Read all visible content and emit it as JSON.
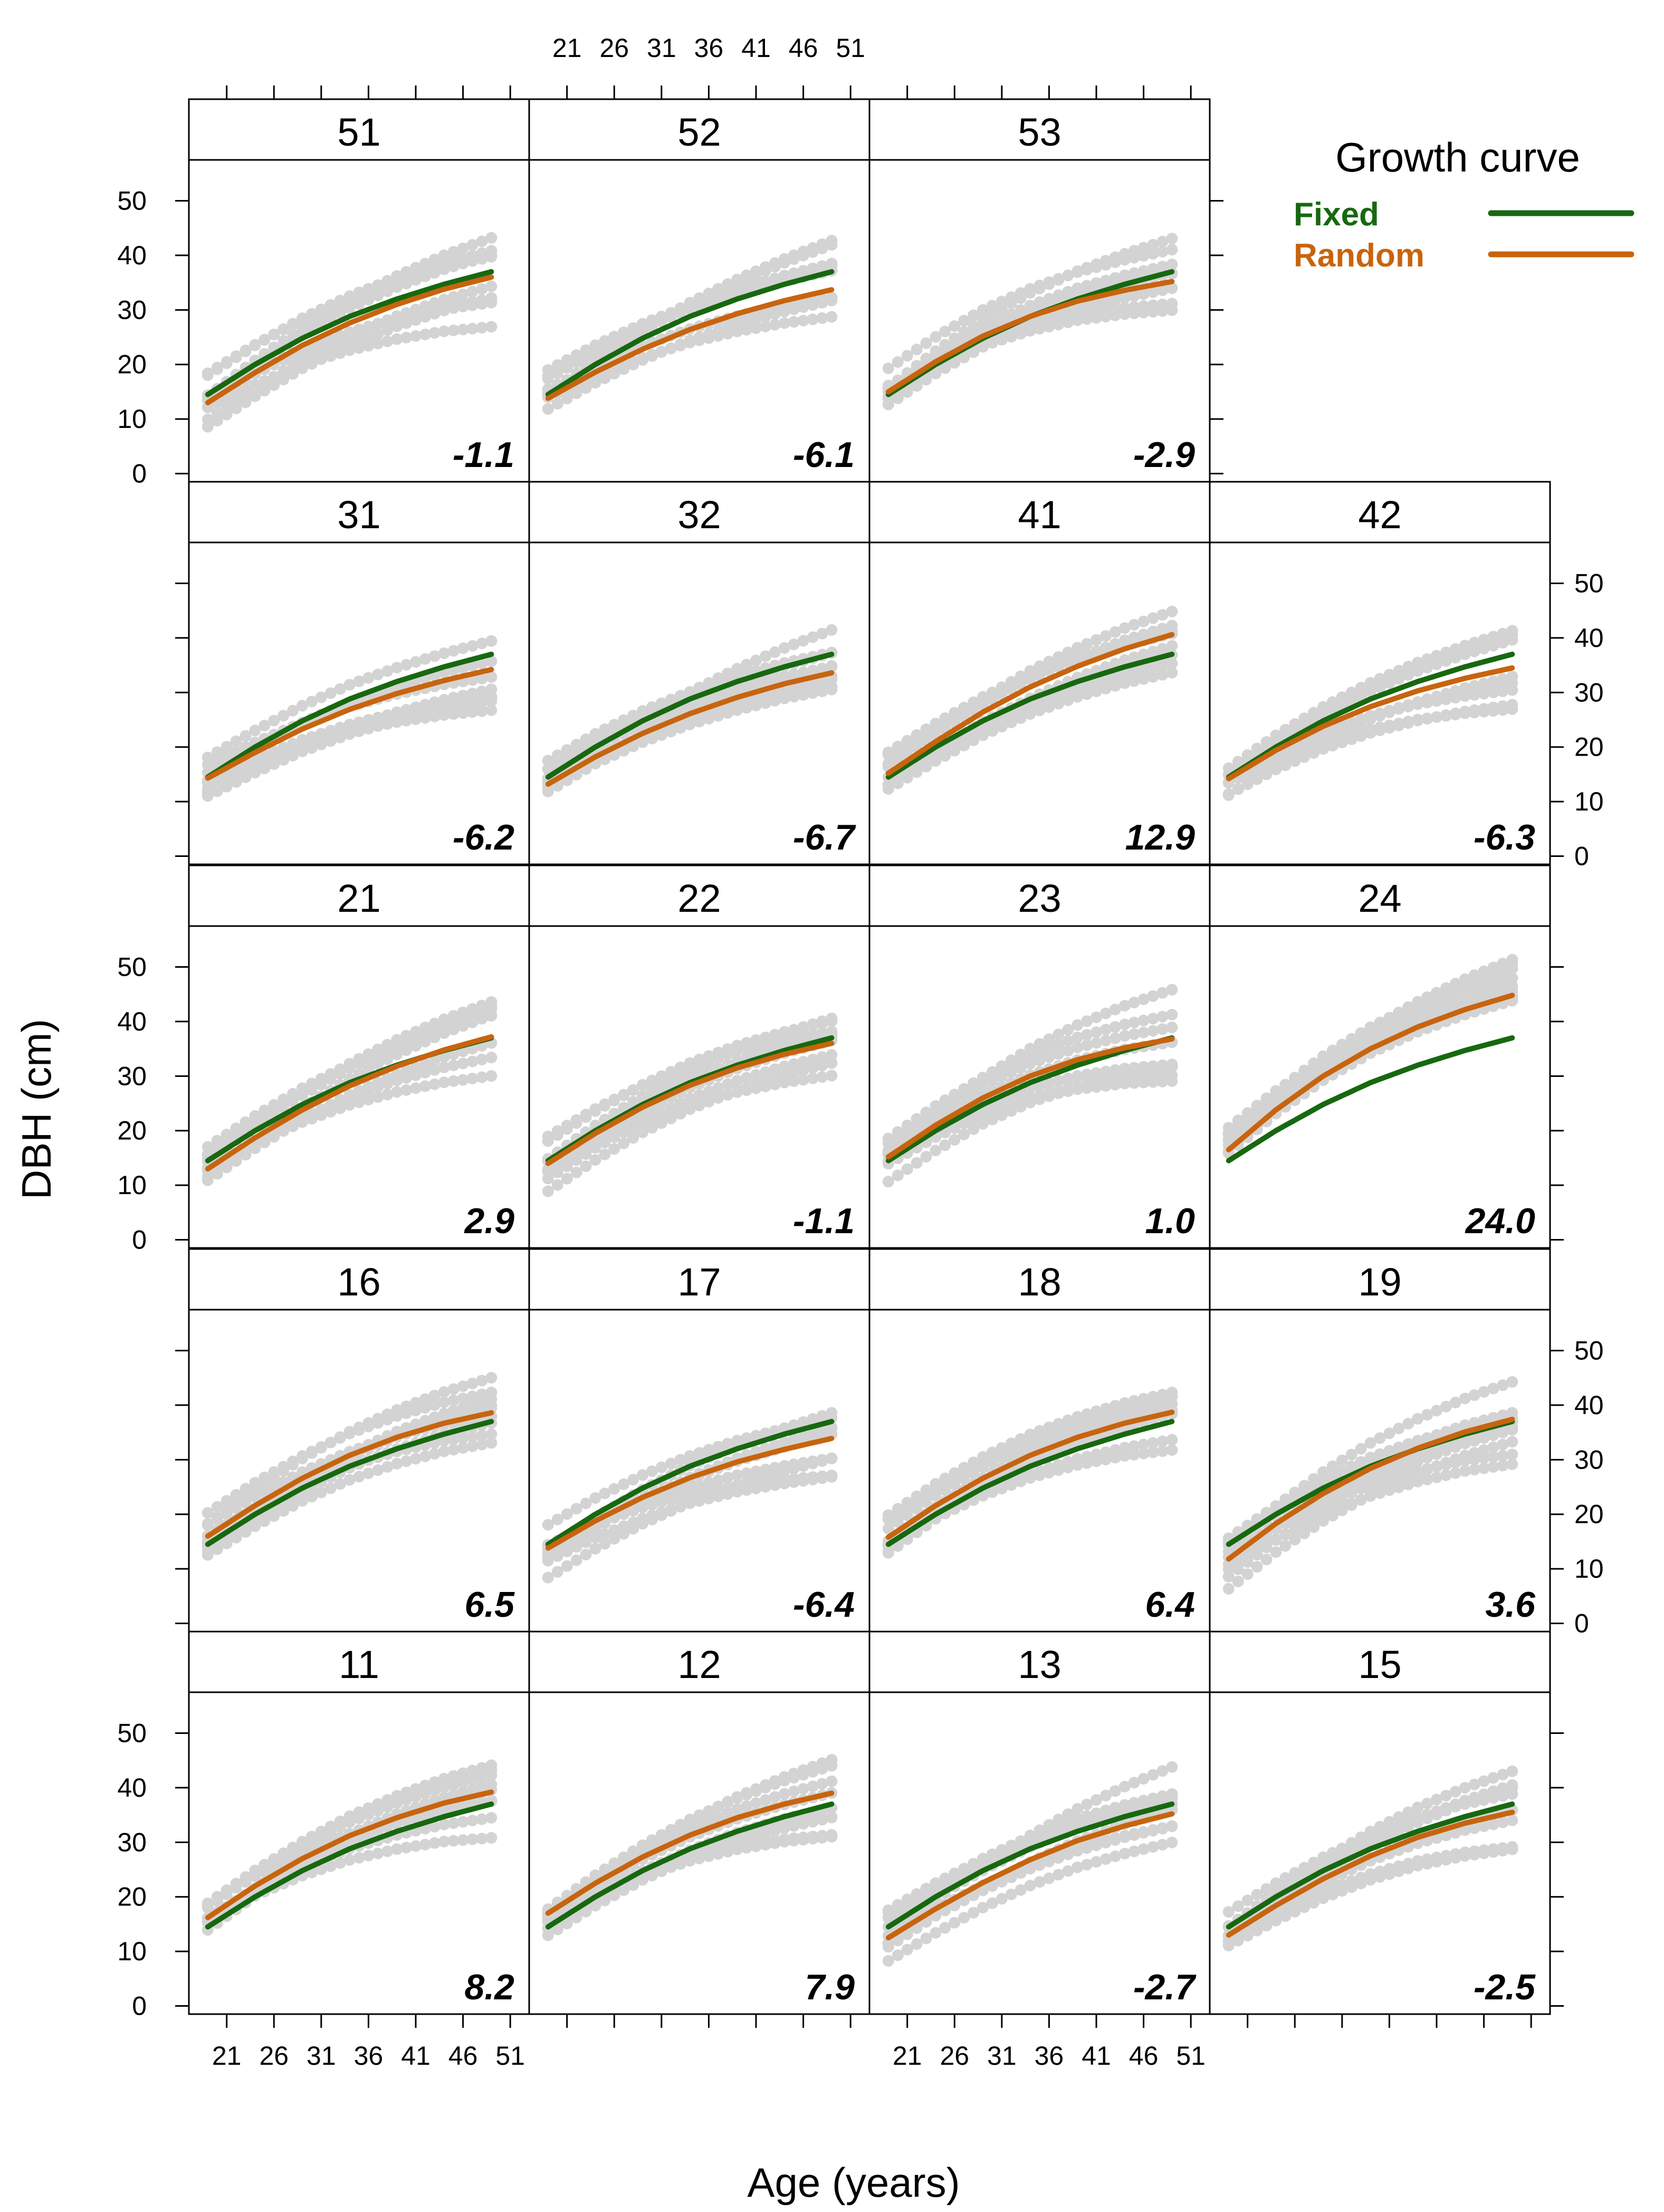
{
  "chart_data": {
    "type": "scatter",
    "title": "",
    "xlabel": "Age (years)",
    "ylabel": "DBH (cm)",
    "xlim": [
      17,
      53
    ],
    "ylim": [
      -1.5,
      57.5
    ],
    "x_ticks": [
      21,
      26,
      31,
      36,
      41,
      46,
      51
    ],
    "y_ticks": [
      0,
      10,
      20,
      30,
      40,
      50
    ],
    "legend": {
      "title": "Growth curve",
      "position": "top-right",
      "items": [
        {
          "name": "Fixed",
          "color": "#17680f"
        },
        {
          "name": "Random",
          "color": "#c8640e"
        }
      ]
    },
    "colors": {
      "fixed": "#17680f",
      "random": "#c8640e",
      "observations": "#d3d3d3"
    },
    "fixed_curve": {
      "x": [
        19,
        24,
        29,
        34,
        39,
        44,
        49
      ],
      "y": [
        14.5,
        20.0,
        24.8,
        28.8,
        32.0,
        34.7,
        37.0
      ]
    },
    "panels": [
      {
        "id": "51",
        "value": "-1.1",
        "random_y": [
          13.0,
          18.5,
          23.5,
          27.6,
          31.0,
          33.8,
          36.0
        ],
        "observations": "gray point clusters"
      },
      {
        "id": "52",
        "value": "-6.1",
        "random_y": [
          13.8,
          18.6,
          22.8,
          26.4,
          29.3,
          31.7,
          33.7
        ],
        "observations": "gray point clusters"
      },
      {
        "id": "53",
        "value": "-2.9",
        "random_y": [
          15.0,
          20.5,
          25.2,
          28.8,
          31.6,
          33.6,
          35.2
        ],
        "observations": "gray point clusters"
      },
      {
        "id": "31",
        "value": "-6.2",
        "random_y": [
          14.3,
          19.0,
          23.3,
          26.9,
          29.8,
          32.2,
          34.2
        ],
        "observations": "gray point clusters"
      },
      {
        "id": "32",
        "value": "-6.7",
        "random_y": [
          13.2,
          18.2,
          22.5,
          26.1,
          29.1,
          31.6,
          33.6
        ],
        "observations": "gray point clusters"
      },
      {
        "id": "41",
        "value": "12.9",
        "random_y": [
          15.2,
          21.0,
          26.4,
          31.0,
          34.8,
          38.0,
          40.6
        ],
        "observations": "gray point clusters"
      },
      {
        "id": "42",
        "value": "-6.3",
        "random_y": [
          14.2,
          19.4,
          23.8,
          27.4,
          30.3,
          32.6,
          34.5
        ],
        "observations": "gray point clusters"
      },
      {
        "id": "21",
        "value": "2.9",
        "random_y": [
          13.0,
          18.7,
          23.8,
          28.2,
          31.8,
          34.8,
          37.2
        ],
        "observations": "gray point clusters"
      },
      {
        "id": "22",
        "value": "-1.1",
        "random_y": [
          14.0,
          19.5,
          24.3,
          28.3,
          31.5,
          34.0,
          36.0
        ],
        "observations": "gray point clusters"
      },
      {
        "id": "23",
        "value": "1.0",
        "random_y": [
          15.2,
          21.0,
          26.0,
          30.0,
          33.0,
          35.2,
          36.8
        ],
        "observations": "gray point clusters"
      },
      {
        "id": "24",
        "value": "24.0",
        "random_y": [
          16.5,
          23.8,
          30.0,
          35.0,
          39.0,
          42.2,
          44.8
        ],
        "observations": "gray point clusters"
      },
      {
        "id": "16",
        "value": "6.5",
        "random_y": [
          16.0,
          21.6,
          26.6,
          30.8,
          34.1,
          36.7,
          38.6
        ],
        "observations": "gray point clusters"
      },
      {
        "id": "17",
        "value": "-6.4",
        "random_y": [
          13.8,
          18.8,
          23.1,
          26.7,
          29.6,
          31.9,
          33.9
        ],
        "observations": "gray point clusters"
      },
      {
        "id": "18",
        "value": "6.4",
        "random_y": [
          15.8,
          21.6,
          26.6,
          30.8,
          34.1,
          36.7,
          38.7
        ],
        "observations": "gray point clusters"
      },
      {
        "id": "19",
        "value": "3.6",
        "random_y": [
          11.8,
          18.3,
          23.8,
          28.4,
          32.1,
          35.1,
          37.4
        ],
        "observations": "gray point clusters"
      },
      {
        "id": "11",
        "value": "8.2",
        "random_y": [
          16.2,
          22.0,
          27.0,
          31.2,
          34.5,
          37.2,
          39.2
        ],
        "observations": "gray point clusters"
      },
      {
        "id": "12",
        "value": "7.9",
        "random_y": [
          17.0,
          22.5,
          27.3,
          31.3,
          34.5,
          37.0,
          39.0
        ],
        "observations": "gray point clusters"
      },
      {
        "id": "13",
        "value": "-2.7",
        "random_y": [
          12.5,
          17.8,
          22.6,
          26.8,
          30.3,
          33.0,
          35.2
        ],
        "observations": "gray point clusters"
      },
      {
        "id": "15",
        "value": "-2.5",
        "random_y": [
          13.0,
          18.4,
          23.3,
          27.5,
          30.9,
          33.5,
          35.5
        ],
        "observations": "gray point clusters"
      }
    ]
  }
}
